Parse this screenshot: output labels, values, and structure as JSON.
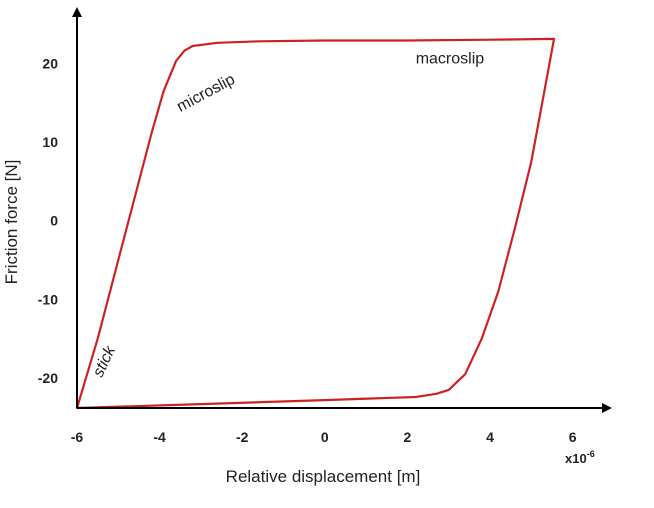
{
  "chart_data": {
    "type": "line",
    "title": "",
    "xlabel": "Relative displacement [m]",
    "ylabel": "Friction force [N]",
    "x_multiplier": "x10",
    "x_multiplier_exp": "-6",
    "xlim": [
      -6,
      6.5
    ],
    "ylim": [
      -24,
      25
    ],
    "xticks": [
      -6,
      -4,
      -2,
      0,
      2,
      4,
      6
    ],
    "xtick_labels": [
      "-6",
      "-4",
      "-2",
      "0",
      "2",
      "4",
      "6"
    ],
    "yticks": [
      -20,
      -10,
      0,
      10,
      20
    ],
    "ytick_labels": [
      "-20",
      "-10",
      "0",
      "10",
      "20"
    ],
    "grid": false,
    "series": [
      {
        "color": "#cc2222",
        "x": [
          -6.0,
          -5.5,
          -5.0,
          -4.6,
          -4.2,
          -3.9,
          -3.6,
          -3.4,
          -3.2,
          -2.6,
          -1.6,
          0.0,
          2.0,
          4.0,
          5.55,
          5.3,
          5.0,
          4.6,
          4.2,
          3.8,
          3.4,
          3.0,
          2.7,
          2.45,
          2.2,
          0.0,
          -3.0,
          -6.0
        ],
        "y": [
          -23.8,
          -15.0,
          -5.0,
          3.0,
          11.0,
          16.5,
          20.3,
          21.6,
          22.2,
          22.6,
          22.8,
          22.9,
          22.9,
          23.0,
          23.1,
          16.0,
          7.5,
          -1.0,
          -9.0,
          -15.0,
          -19.5,
          -21.5,
          -22.0,
          -22.2,
          -22.4,
          -22.8,
          -23.3,
          -23.8
        ]
      }
    ],
    "annotations": [
      {
        "text": "microslip",
        "x": -3.5,
        "y": 13.8,
        "rotation": -28,
        "style": "normal"
      },
      {
        "text": "macroslip",
        "x": 2.2,
        "y": 20.0,
        "rotation": 0,
        "style": "normal"
      },
      {
        "text": "stick",
        "x": -5.4,
        "y": -20.0,
        "rotation": -65,
        "style": "italic"
      }
    ],
    "colors": {
      "line": "#cc2222",
      "axis": "#000000",
      "text": "#222222"
    }
  }
}
